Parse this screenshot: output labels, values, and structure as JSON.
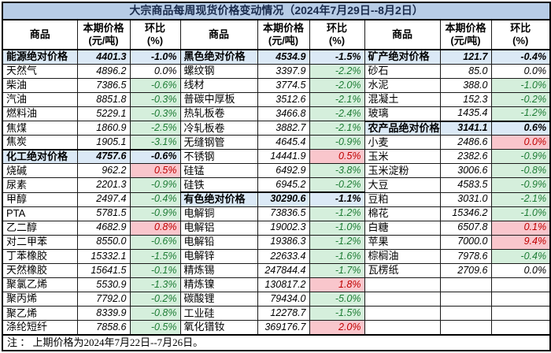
{
  "title": "大宗商品每周现货价格变动情况（2024年7月29日--8月2日）",
  "note": "注 ： 上期价格为2024年7月22日--7月26日。",
  "headers": {
    "commodity": "商品",
    "price": "本期价格",
    "price_unit": "(元/吨)",
    "chg": "环比",
    "chg_unit": "(%)"
  },
  "colors": {
    "title-bg": "#b7cce6",
    "title-text": "#1a2b4c",
    "section-bg": "#dbe9f6",
    "green-bg": "#d5efdc",
    "green-text": "#1e7d35",
    "red-bg": "#f9c6cc",
    "red-text": "#c00000",
    "grid": "#1a1a1a"
  },
  "chart_data": {
    "type": "table",
    "title": "大宗商品每周现货价格变动情况",
    "period": "2024年7月29日--8月2日",
    "prev_period": "2024年7月22日--7月26日",
    "columns": [
      "商品",
      "本期价格(元/吨)",
      "环比(%)"
    ],
    "style_legend": {
      "section": "category aggregate row, light blue fill, bold",
      "down": "negative weekly change, light green fill, green text",
      "up": "positive weekly change, light pink fill, red text",
      "flat": "no fill"
    },
    "groups": [
      {
        "rows": [
          {
            "name": "能源绝对价格",
            "price": "4401.3",
            "chg": "-1.0%",
            "style": "section"
          },
          {
            "name": "天然气",
            "price": "4896.2",
            "chg": "0.0%",
            "style": "flat"
          },
          {
            "name": "柴油",
            "price": "7386.5",
            "chg": "-0.6%",
            "style": "down"
          },
          {
            "name": "汽油",
            "price": "8851.8",
            "chg": "-0.3%",
            "style": "down"
          },
          {
            "name": "燃料油",
            "price": "5229.1",
            "chg": "-0.3%",
            "style": "down"
          },
          {
            "name": "焦煤",
            "price": "1860.9",
            "chg": "-2.5%",
            "style": "down"
          },
          {
            "name": "焦炭",
            "price": "1905.1",
            "chg": "-3.1%",
            "style": "down"
          },
          {
            "name": "化工绝对价格",
            "price": "4757.6",
            "chg": "-0.6%",
            "style": "section"
          },
          {
            "name": "烧碱",
            "price": "962.2",
            "chg": "0.5%",
            "style": "up"
          },
          {
            "name": "尿素",
            "price": "2201.3",
            "chg": "-0.9%",
            "style": "down"
          },
          {
            "name": "甲醇",
            "price": "2497.4",
            "chg": "-0.4%",
            "style": "down"
          },
          {
            "name": "PTA",
            "price": "5781.5",
            "chg": "-0.9%",
            "style": "down"
          },
          {
            "name": "乙二醇",
            "price": "4682.9",
            "chg": "0.8%",
            "style": "up"
          },
          {
            "name": "对二甲苯",
            "price": "8550.0",
            "chg": "-0.6%",
            "style": "down"
          },
          {
            "name": "丁苯橡胶",
            "price": "15332.1",
            "chg": "-1.5%",
            "style": "down"
          },
          {
            "name": "天然橡胶",
            "price": "15641.5",
            "chg": "-0.1%",
            "style": "down"
          },
          {
            "name": "聚氯乙烯",
            "price": "5530.9",
            "chg": "-1.3%",
            "style": "down"
          },
          {
            "name": "聚丙烯",
            "price": "7792.0",
            "chg": "-0.2%",
            "style": "down"
          },
          {
            "name": "聚乙烯",
            "price": "8339.9",
            "chg": "-0.8%",
            "style": "down"
          },
          {
            "name": "涤纶短纤",
            "price": "7858.6",
            "chg": "-0.5%",
            "style": "down"
          }
        ]
      },
      {
        "rows": [
          {
            "name": "黑色绝对价格",
            "price": "4534.9",
            "chg": "-1.5%",
            "style": "section"
          },
          {
            "name": "螺纹钢",
            "price": "3397.9",
            "chg": "-2.2%",
            "style": "down"
          },
          {
            "name": "线材",
            "price": "3774.5",
            "chg": "-2.0%",
            "style": "down"
          },
          {
            "name": "普碳中厚板",
            "price": "3512.6",
            "chg": "-2.1%",
            "style": "down"
          },
          {
            "name": "热轧板卷",
            "price": "3466.8",
            "chg": "-2.4%",
            "style": "down"
          },
          {
            "name": "冷轧板卷",
            "price": "3882.7",
            "chg": "-2.1%",
            "style": "down"
          },
          {
            "name": "无缝钢管",
            "price": "4645.4",
            "chg": "-0.9%",
            "style": "down"
          },
          {
            "name": "不锈钢",
            "price": "14441.9",
            "chg": "0.5%",
            "style": "up"
          },
          {
            "name": "硅锰",
            "price": "6492.9",
            "chg": "-3.8%",
            "style": "down"
          },
          {
            "name": "硅铁",
            "price": "6945.2",
            "chg": "-0.2%",
            "style": "down"
          },
          {
            "name": "有色绝对价格",
            "price": "30290.6",
            "chg": "-1.1%",
            "style": "section"
          },
          {
            "name": "电解铜",
            "price": "73836.5",
            "chg": "-1.2%",
            "style": "down"
          },
          {
            "name": "电解铝",
            "price": "19002.3",
            "chg": "-1.0%",
            "style": "down"
          },
          {
            "name": "电解铅",
            "price": "19386.3",
            "chg": "-1.2%",
            "style": "down"
          },
          {
            "name": "电解锌",
            "price": "22633.4",
            "chg": "-1.6%",
            "style": "down"
          },
          {
            "name": "精炼锡",
            "price": "247844.4",
            "chg": "-1.7%",
            "style": "down"
          },
          {
            "name": "精炼镍",
            "price": "130817.2",
            "chg": "1.8%",
            "style": "up"
          },
          {
            "name": "碳酸锂",
            "price": "79434.0",
            "chg": "-5.0%",
            "style": "down"
          },
          {
            "name": "工业硅",
            "price": "12278.7",
            "chg": "-1.5%",
            "style": "down"
          },
          {
            "name": "氧化镨钕",
            "price": "369176.7",
            "chg": "2.0%",
            "style": "up"
          }
        ]
      },
      {
        "rows": [
          {
            "name": "矿产绝对价格",
            "price": "121.7",
            "chg": "-0.4%",
            "style": "section"
          },
          {
            "name": "砂石",
            "price": "85.0",
            "chg": "0.0%",
            "style": "flat"
          },
          {
            "name": "水泥",
            "price": "388.0",
            "chg": "-1.0%",
            "style": "down"
          },
          {
            "name": "混凝土",
            "price": "152.3",
            "chg": "-0.2%",
            "style": "down"
          },
          {
            "name": "玻璃",
            "price": "1435.4",
            "chg": "-1.2%",
            "style": "down"
          },
          {
            "name": "农产品绝对价格",
            "price": "3141.1",
            "chg": "0.6%",
            "style": "section"
          },
          {
            "name": "小麦",
            "price": "2486.6",
            "chg": "0.0%",
            "style": "up"
          },
          {
            "name": "玉米",
            "price": "2382.6",
            "chg": "-0.9%",
            "style": "down"
          },
          {
            "name": "玉米淀粉",
            "price": "3006.6",
            "chg": "-0.8%",
            "style": "down"
          },
          {
            "name": "大豆",
            "price": "4583.5",
            "chg": "-0.9%",
            "style": "down"
          },
          {
            "name": "豆粕",
            "price": "3031.0",
            "chg": "-2.1%",
            "style": "down"
          },
          {
            "name": "棉花",
            "price": "15346.2",
            "chg": "-1.0%",
            "style": "down"
          },
          {
            "name": "白糖",
            "price": "6507.8",
            "chg": "0.1%",
            "style": "up"
          },
          {
            "name": "苹果",
            "price": "7000.0",
            "chg": "9.4%",
            "style": "up"
          },
          {
            "name": "棕榈油",
            "price": "7978.6",
            "chg": "-0.4%",
            "style": "down"
          },
          {
            "name": "瓦楞纸",
            "price": "2709.6",
            "chg": "0.0%",
            "style": "flat"
          }
        ]
      }
    ]
  }
}
